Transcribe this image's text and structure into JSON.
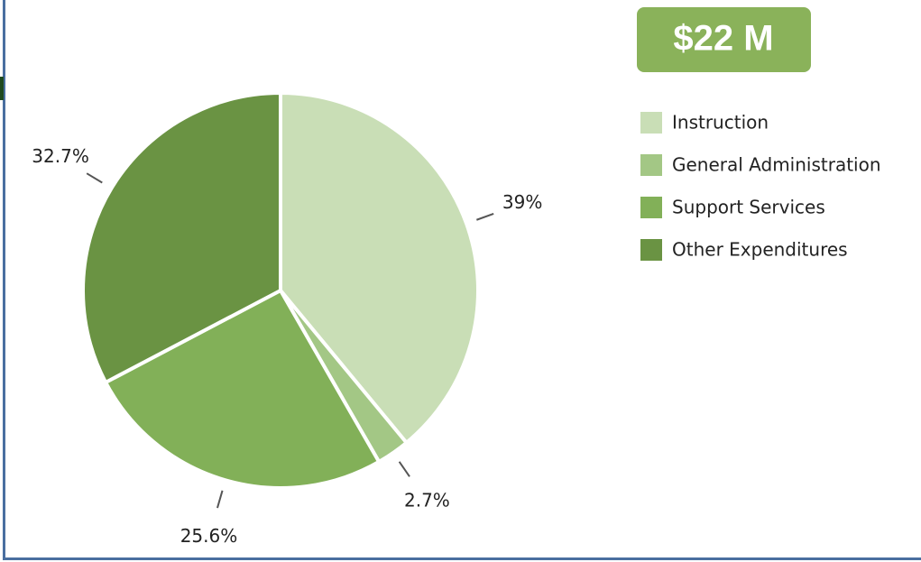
{
  "chart_data": {
    "type": "pie",
    "badge": "$22 M",
    "categories": [
      "Instruction",
      "General Administration",
      "Support Services",
      "Other Expenditures"
    ],
    "values": [
      39,
      2.7,
      25.6,
      32.7
    ],
    "value_labels": [
      "39%",
      "2.7%",
      "25.6%",
      "32.7%"
    ],
    "colors": [
      "#c9deb6",
      "#a3c785",
      "#82b058",
      "#6a9343"
    ],
    "legend": "right"
  }
}
